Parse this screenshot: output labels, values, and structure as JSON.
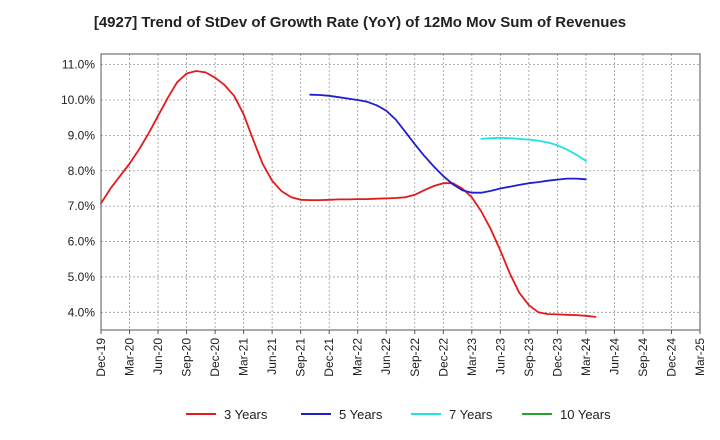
{
  "chart_data": {
    "type": "line",
    "title": "[4927]  Trend of StDev of Growth Rate (YoY) of 12Mo Mov Sum of Revenues",
    "xlabel": "",
    "ylabel": "",
    "ylim": [
      3.5,
      11.3
    ],
    "y_ticks": [
      4.0,
      5.0,
      6.0,
      7.0,
      8.0,
      9.0,
      10.0,
      11.0
    ],
    "y_tick_labels": [
      "4.0%",
      "5.0%",
      "6.0%",
      "7.0%",
      "8.0%",
      "9.0%",
      "10.0%",
      "11.0%"
    ],
    "x_tick_labels": [
      "Dec-19",
      "Mar-20",
      "Jun-20",
      "Sep-20",
      "Dec-20",
      "Mar-21",
      "Jun-21",
      "Sep-21",
      "Dec-21",
      "Mar-22",
      "Jun-22",
      "Sep-22",
      "Dec-22",
      "Mar-23",
      "Jun-23",
      "Sep-23",
      "Dec-23",
      "Mar-24",
      "Jun-24",
      "Sep-24",
      "Dec-24",
      "Mar-25"
    ],
    "grid": true,
    "legend_position": "bottom",
    "series": [
      {
        "name": "3 Years",
        "color": "#e31a1c",
        "values": [
          7.08,
          7.5,
          7.85,
          8.2,
          8.6,
          9.05,
          9.55,
          10.05,
          10.5,
          10.75,
          10.82,
          10.78,
          10.63,
          10.42,
          10.12,
          9.6,
          8.88,
          8.2,
          7.72,
          7.42,
          7.25,
          7.18,
          7.17,
          7.17,
          7.18,
          7.19,
          7.19,
          7.2,
          7.2,
          7.21,
          7.22,
          7.23,
          7.25,
          7.32,
          7.45,
          7.57,
          7.65,
          7.65,
          7.5,
          7.25,
          6.85,
          6.35,
          5.75,
          5.1,
          4.55,
          4.2,
          4.0,
          3.95,
          3.94,
          3.93,
          3.92,
          3.9,
          3.87
        ]
      },
      {
        "name": "5 Years",
        "color": "#1f1fcf",
        "values": [
          null,
          null,
          null,
          null,
          null,
          null,
          null,
          null,
          null,
          null,
          null,
          null,
          null,
          null,
          null,
          null,
          null,
          null,
          null,
          null,
          null,
          null,
          10.15,
          10.14,
          10.12,
          10.08,
          10.04,
          10.0,
          9.95,
          9.85,
          9.7,
          9.45,
          9.1,
          8.75,
          8.42,
          8.12,
          7.85,
          7.62,
          7.45,
          7.38,
          7.38,
          7.43,
          7.5,
          7.55,
          7.6,
          7.65,
          7.68,
          7.72,
          7.75,
          7.78,
          7.78,
          7.76
        ]
      },
      {
        "name": "7 Years",
        "color": "#1fe3e3",
        "values": [
          null,
          null,
          null,
          null,
          null,
          null,
          null,
          null,
          null,
          null,
          null,
          null,
          null,
          null,
          null,
          null,
          null,
          null,
          null,
          null,
          null,
          null,
          null,
          null,
          null,
          null,
          null,
          null,
          null,
          null,
          null,
          null,
          null,
          null,
          null,
          null,
          null,
          null,
          null,
          null,
          8.9,
          8.92,
          8.93,
          8.92,
          8.9,
          8.88,
          8.85,
          8.8,
          8.72,
          8.6,
          8.45,
          8.28
        ]
      },
      {
        "name": "10 Years",
        "color": "#2ca02c",
        "values": []
      }
    ]
  }
}
